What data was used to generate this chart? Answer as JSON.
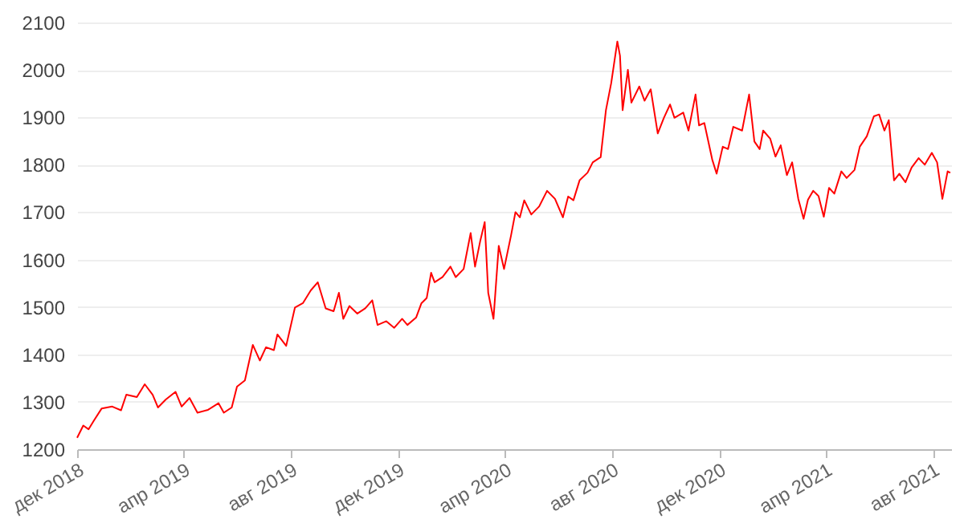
{
  "chart_data": {
    "type": "line",
    "xlim": [
      "2018-12-01",
      "2021-08-22"
    ],
    "xticks": [
      {
        "value": "2018-12-01",
        "label": "дек 2018"
      },
      {
        "value": "2019-04-01",
        "label": "апр 2019"
      },
      {
        "value": "2019-08-01",
        "label": "авг 2019"
      },
      {
        "value": "2019-12-01",
        "label": "дек 2019"
      },
      {
        "value": "2020-04-01",
        "label": "апр 2020"
      },
      {
        "value": "2020-08-01",
        "label": "авг 2020"
      },
      {
        "value": "2020-12-01",
        "label": "дек 2020"
      },
      {
        "value": "2021-04-01",
        "label": "апр 2021"
      },
      {
        "value": "2021-08-01",
        "label": "авг 2021"
      }
    ],
    "ylim": [
      1200,
      2100
    ],
    "yticks": [
      1200,
      1300,
      1400,
      1500,
      1600,
      1700,
      1800,
      1900,
      2000,
      2100
    ],
    "grid": "y",
    "legend": false,
    "marker": "none",
    "line_style": "solid",
    "x": [
      "2018-12-01",
      "2018-12-08",
      "2018-12-14",
      "2018-12-20",
      "2018-12-29",
      "2019-01-10",
      "2019-01-20",
      "2019-01-26",
      "2019-02-07",
      "2019-02-16",
      "2019-02-25",
      "2019-03-03",
      "2019-03-12",
      "2019-03-23",
      "2019-03-30",
      "2019-04-08",
      "2019-04-17",
      "2019-04-29",
      "2019-05-11",
      "2019-05-17",
      "2019-05-26",
      "2019-06-01",
      "2019-06-10",
      "2019-06-19",
      "2019-06-27",
      "2019-07-04",
      "2019-07-13",
      "2019-07-17",
      "2019-07-27",
      "2019-08-06",
      "2019-08-15",
      "2019-08-24",
      "2019-09-01",
      "2019-09-10",
      "2019-09-19",
      "2019-09-25",
      "2019-09-30",
      "2019-10-07",
      "2019-10-16",
      "2019-10-25",
      "2019-11-02",
      "2019-11-08",
      "2019-11-18",
      "2019-11-27",
      "2019-12-06",
      "2019-12-12",
      "2019-12-22",
      "2019-12-28",
      "2020-01-03",
      "2020-01-08",
      "2020-01-12",
      "2020-01-21",
      "2020-01-30",
      "2020-02-05",
      "2020-02-14",
      "2020-02-22",
      "2020-02-27",
      "2020-03-04",
      "2020-03-09",
      "2020-03-13",
      "2020-03-19",
      "2020-03-25",
      "2020-03-31",
      "2020-04-08",
      "2020-04-13",
      "2020-04-18",
      "2020-04-23",
      "2020-05-01",
      "2020-05-10",
      "2020-05-19",
      "2020-05-28",
      "2020-06-06",
      "2020-06-12",
      "2020-06-18",
      "2020-06-25",
      "2020-07-04",
      "2020-07-10",
      "2020-07-19",
      "2020-07-25",
      "2020-07-31",
      "2020-08-07",
      "2020-08-10",
      "2020-08-13",
      "2020-08-19",
      "2020-08-23",
      "2020-09-01",
      "2020-09-07",
      "2020-09-14",
      "2020-09-22",
      "2020-09-29",
      "2020-10-06",
      "2020-10-11",
      "2020-10-21",
      "2020-10-27",
      "2020-11-04",
      "2020-11-08",
      "2020-11-14",
      "2020-11-23",
      "2020-11-28",
      "2020-12-05",
      "2020-12-11",
      "2020-12-17",
      "2020-12-27",
      "2021-01-04",
      "2021-01-10",
      "2021-01-16",
      "2021-01-20",
      "2021-01-28",
      "2021-02-03",
      "2021-02-09",
      "2021-02-16",
      "2021-02-22",
      "2021-03-01",
      "2021-03-07",
      "2021-03-12",
      "2021-03-18",
      "2021-03-24",
      "2021-03-30",
      "2021-04-05",
      "2021-04-11",
      "2021-04-19",
      "2021-04-25",
      "2021-05-04",
      "2021-05-10",
      "2021-05-18",
      "2021-05-26",
      "2021-06-01",
      "2021-06-07",
      "2021-06-12",
      "2021-06-18",
      "2021-06-24",
      "2021-07-01",
      "2021-07-08",
      "2021-07-16",
      "2021-07-23",
      "2021-07-31",
      "2021-08-06",
      "2021-08-12",
      "2021-08-18",
      "2021-08-21"
    ],
    "series": [
      {
        "color": "#ff0000",
        "values": [
          1224,
          1250,
          1242,
          1260,
          1286,
          1290,
          1282,
          1315,
          1310,
          1337,
          1315,
          1288,
          1305,
          1321,
          1290,
          1308,
          1277,
          1283,
          1297,
          1277,
          1288,
          1332,
          1345,
          1420,
          1387,
          1415,
          1409,
          1442,
          1418,
          1499,
          1508,
          1535,
          1552,
          1497,
          1491,
          1530,
          1475,
          1502,
          1486,
          1497,
          1514,
          1462,
          1470,
          1456,
          1475,
          1462,
          1478,
          1508,
          1519,
          1572,
          1552,
          1563,
          1585,
          1563,
          1580,
          1656,
          1585,
          1640,
          1679,
          1530,
          1475,
          1629,
          1580,
          1651,
          1700,
          1689,
          1725,
          1695,
          1712,
          1745,
          1728,
          1689,
          1733,
          1725,
          1767,
          1783,
          1805,
          1816,
          1915,
          1972,
          2060,
          2030,
          1915,
          2000,
          1931,
          1965,
          1935,
          1959,
          1866,
          1899,
          1927,
          1899,
          1910,
          1872,
          1948,
          1883,
          1888,
          1811,
          1781,
          1838,
          1833,
          1880,
          1872,
          1948,
          1849,
          1833,
          1872,
          1855,
          1817,
          1841,
          1778,
          1805,
          1728,
          1686,
          1726,
          1745,
          1734,
          1690,
          1751,
          1739,
          1786,
          1772,
          1789,
          1838,
          1860,
          1902,
          1906,
          1872,
          1894,
          1767,
          1781,
          1763,
          1794,
          1814,
          1800,
          1825,
          1805,
          1728,
          1786,
          1783
        ]
      }
    ]
  }
}
